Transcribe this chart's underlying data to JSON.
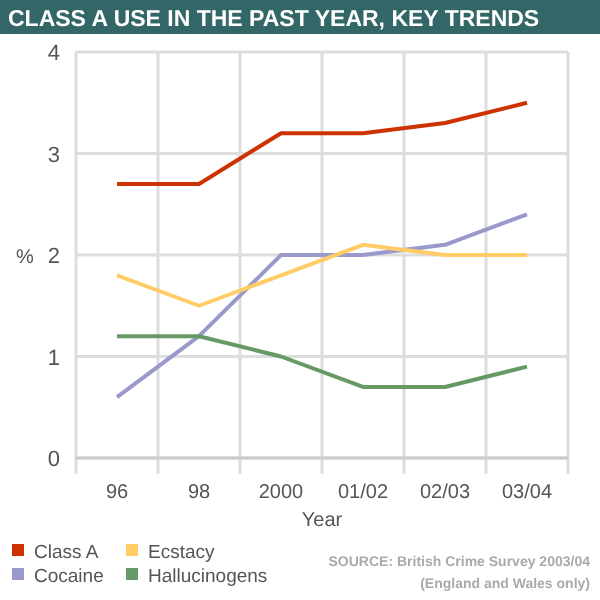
{
  "chart_data": {
    "type": "line",
    "title": "CLASS A USE IN THE PAST YEAR, KEY TRENDS",
    "xlabel": "Year",
    "ylabel": "%",
    "categories": [
      "96",
      "98",
      "2000",
      "01/02",
      "02/03",
      "03/04"
    ],
    "ylim": [
      0,
      4
    ],
    "yticks": [
      0,
      1,
      2,
      3,
      4
    ],
    "grid": true,
    "legend": "bottom left",
    "marker": "none",
    "series": [
      {
        "name": "Class A",
        "color": "#cc3300",
        "values": [
          2.7,
          2.7,
          3.2,
          3.2,
          3.3,
          3.5
        ]
      },
      {
        "name": "Cocaine",
        "color": "#9999cc",
        "values": [
          0.6,
          1.2,
          2.0,
          2.0,
          2.1,
          2.4
        ]
      },
      {
        "name": "Ecstacy",
        "color": "#ffcc66",
        "values": [
          1.8,
          1.5,
          1.8,
          2.1,
          2.0,
          2.0
        ]
      },
      {
        "name": "Hallucinogens",
        "color": "#669966",
        "values": [
          1.2,
          1.2,
          1.0,
          0.7,
          0.7,
          0.9
        ]
      }
    ],
    "annotations": [
      "SOURCE: British Crime Survey 2003/04",
      "(England and Wales only)"
    ]
  }
}
